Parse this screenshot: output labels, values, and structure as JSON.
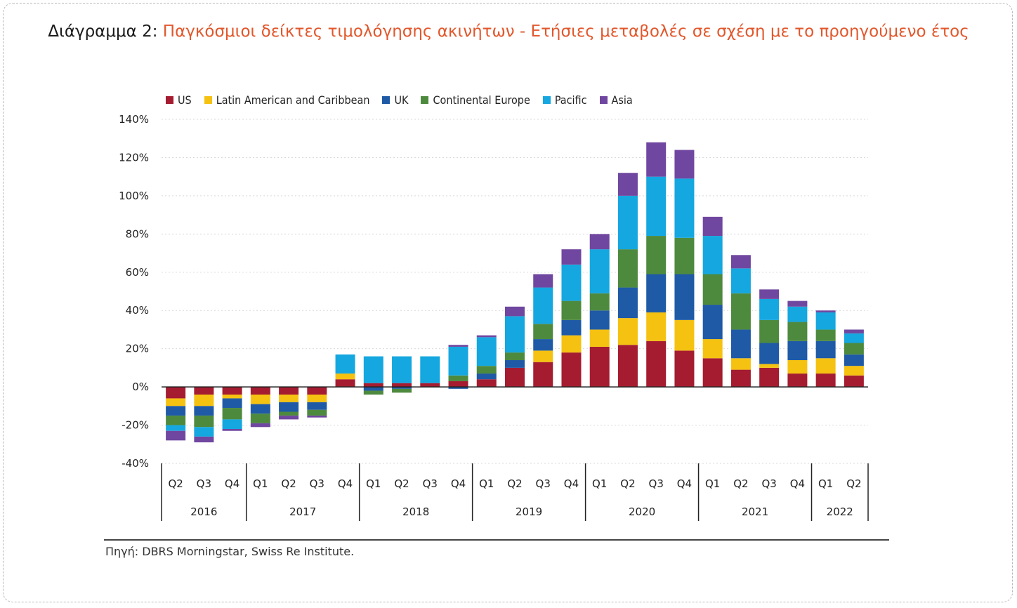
{
  "header": {
    "title_prefix": "Διάγραμμα 2:",
    "title_main": "Παγκόσμιοι δείκτες τιμολόγησης ακινήτων - Ετήσιες μεταβολές σε σχέση με το προηγούμενο έτος"
  },
  "source": "Πηγή: DBRS Morningstar, Swiss Re Institute.",
  "chart_data": {
    "type": "bar",
    "stacked": true,
    "title": "",
    "xlabel": "",
    "ylabel": "",
    "ylim": [
      -40,
      140
    ],
    "yticks": [
      140,
      120,
      100,
      80,
      60,
      40,
      20,
      0,
      -20,
      -40
    ],
    "ytick_labels": [
      "140%",
      "120%",
      "100%",
      "80%",
      "60%",
      "40%",
      "20%",
      "0%",
      "-20%",
      "-40%"
    ],
    "grid": true,
    "legend_position": "top-left",
    "categories": [
      "Q2",
      "Q3",
      "Q4",
      "Q1",
      "Q2",
      "Q3",
      "Q4",
      "Q1",
      "Q2",
      "Q3",
      "Q4",
      "Q1",
      "Q2",
      "Q3",
      "Q4",
      "Q1",
      "Q2",
      "Q3",
      "Q4",
      "Q1",
      "Q2",
      "Q3",
      "Q4",
      "Q1",
      "Q2"
    ],
    "years": [
      {
        "label": "2016",
        "count": 3
      },
      {
        "label": "2017",
        "count": 4
      },
      {
        "label": "2018",
        "count": 4
      },
      {
        "label": "2019",
        "count": 4
      },
      {
        "label": "2020",
        "count": 4
      },
      {
        "label": "2021",
        "count": 4
      },
      {
        "label": "2022",
        "count": 2
      }
    ],
    "series": [
      {
        "name": "US",
        "color": "#a51c30",
        "values": [
          -6,
          -4,
          -4,
          -4,
          -4,
          -4,
          4,
          2,
          2,
          2,
          3,
          4,
          10,
          13,
          18,
          21,
          22,
          24,
          19,
          15,
          9,
          10,
          7,
          7,
          6
        ]
      },
      {
        "name": "Latin American and Caribbean",
        "color": "#f5c211",
        "values": [
          -4,
          -6,
          -2,
          -5,
          -4,
          -4,
          3,
          0,
          0,
          0,
          0,
          0,
          0,
          6,
          9,
          9,
          14,
          15,
          16,
          10,
          6,
          2,
          7,
          8,
          5
        ]
      },
      {
        "name": "UK",
        "color": "#1f5aa6",
        "values": [
          -5,
          -5,
          -5,
          -5,
          -5,
          -4,
          0,
          -2,
          -1,
          0,
          -1,
          3,
          4,
          6,
          8,
          10,
          16,
          20,
          24,
          18,
          15,
          11,
          10,
          9,
          6
        ]
      },
      {
        "name": "Continental Europe",
        "color": "#4e8a3e",
        "values": [
          -5,
          -6,
          -6,
          -5,
          -2,
          -3,
          0,
          -2,
          -2,
          0,
          3,
          4,
          4,
          8,
          10,
          9,
          20,
          20,
          19,
          16,
          19,
          12,
          10,
          6,
          6
        ]
      },
      {
        "name": "Pacific",
        "color": "#15a7e0",
        "values": [
          -3,
          -5,
          -5,
          0,
          0,
          0,
          10,
          14,
          14,
          14,
          15,
          15,
          19,
          19,
          19,
          23,
          28,
          31,
          31,
          20,
          13,
          11,
          8,
          9,
          5
        ]
      },
      {
        "name": "Asia",
        "color": "#7047a0",
        "values": [
          -5,
          -3,
          -1,
          -2,
          -2,
          -1,
          0,
          0,
          0,
          0,
          1,
          1,
          5,
          7,
          8,
          8,
          12,
          18,
          15,
          10,
          7,
          5,
          3,
          1,
          2
        ]
      }
    ]
  }
}
